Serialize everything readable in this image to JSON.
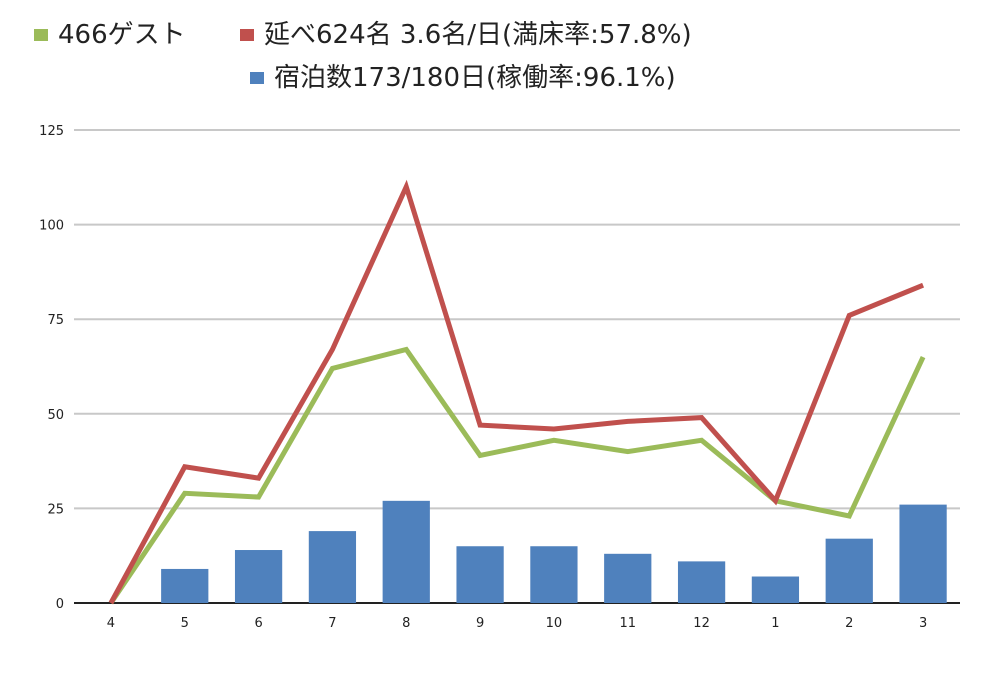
{
  "legend": {
    "guests": "466ゲスト",
    "person_nights": "延べ624名 3.6名/日(満床率:57.8%)",
    "nights": "宿泊数173/180日(稼働率:96.1%)"
  },
  "chart_data": {
    "type": "bar+line",
    "title": "",
    "xlabel": "",
    "ylabel": "",
    "ylim": [
      0,
      125
    ],
    "yticks": [
      0,
      25,
      50,
      75,
      100,
      125
    ],
    "grid": true,
    "legend_position": "top",
    "categories": [
      "4",
      "5",
      "6",
      "7",
      "8",
      "9",
      "10",
      "11",
      "12",
      "1",
      "2",
      "3"
    ],
    "series": [
      {
        "name": "466ゲスト",
        "type": "line",
        "color": "#9bbb59",
        "values": [
          0,
          29,
          28,
          62,
          67,
          39,
          43,
          40,
          43,
          27,
          23,
          65
        ]
      },
      {
        "name": "延べ624名 3.6名/日(満床率:57.8%)",
        "type": "line",
        "color": "#c0504d",
        "values": [
          0,
          36,
          33,
          67,
          110,
          47,
          46,
          48,
          49,
          27,
          76,
          84
        ]
      },
      {
        "name": "宿泊数173/180日(稼働率:96.1%)",
        "type": "bar",
        "color": "#4f81bd",
        "values": [
          0,
          9,
          14,
          19,
          27,
          15,
          15,
          13,
          11,
          7,
          17,
          26
        ]
      }
    ]
  }
}
